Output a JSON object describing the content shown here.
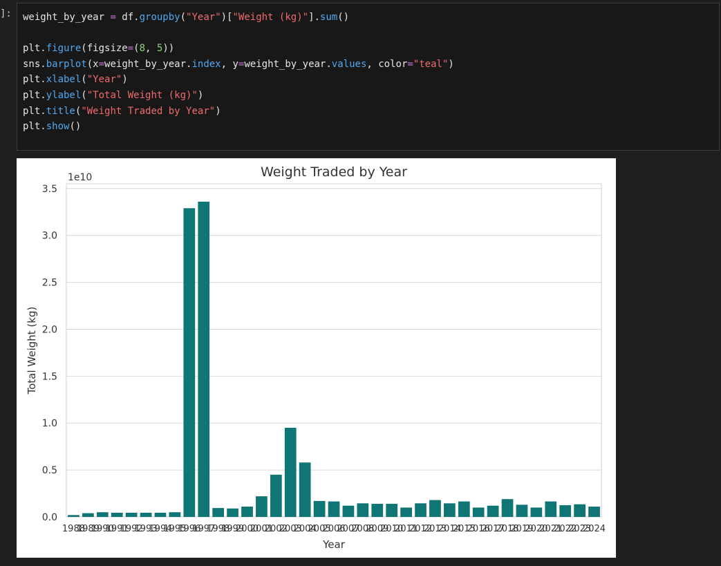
{
  "cell": {
    "prompt": "]:",
    "lines": [
      [
        {
          "t": "weight_by_year ",
          "c": "default"
        },
        {
          "t": "=",
          "c": "op"
        },
        {
          "t": " df.",
          "c": "default"
        },
        {
          "t": "groupby",
          "c": "func"
        },
        {
          "t": "(",
          "c": "default"
        },
        {
          "t": "\"Year\"",
          "c": "string"
        },
        {
          "t": ")[",
          "c": "default"
        },
        {
          "t": "\"Weight (kg)\"",
          "c": "string"
        },
        {
          "t": "].",
          "c": "default"
        },
        {
          "t": "sum",
          "c": "func"
        },
        {
          "t": "()",
          "c": "default"
        }
      ],
      [],
      [
        {
          "t": "plt.",
          "c": "default"
        },
        {
          "t": "figure",
          "c": "func"
        },
        {
          "t": "(figsize",
          "c": "default"
        },
        {
          "t": "=",
          "c": "op"
        },
        {
          "t": "(",
          "c": "default"
        },
        {
          "t": "8",
          "c": "number"
        },
        {
          "t": ", ",
          "c": "default"
        },
        {
          "t": "5",
          "c": "number"
        },
        {
          "t": "))",
          "c": "default"
        }
      ],
      [
        {
          "t": "sns.",
          "c": "default"
        },
        {
          "t": "barplot",
          "c": "func"
        },
        {
          "t": "(x",
          "c": "default"
        },
        {
          "t": "=",
          "c": "op"
        },
        {
          "t": "weight_by_year.",
          "c": "default"
        },
        {
          "t": "index",
          "c": "func"
        },
        {
          "t": ", y",
          "c": "default"
        },
        {
          "t": "=",
          "c": "op"
        },
        {
          "t": "weight_by_year.",
          "c": "default"
        },
        {
          "t": "values",
          "c": "func"
        },
        {
          "t": ", color",
          "c": "default"
        },
        {
          "t": "=",
          "c": "op"
        },
        {
          "t": "\"teal\"",
          "c": "string"
        },
        {
          "t": ")",
          "c": "default"
        }
      ],
      [
        {
          "t": "plt.",
          "c": "default"
        },
        {
          "t": "xlabel",
          "c": "func"
        },
        {
          "t": "(",
          "c": "default"
        },
        {
          "t": "\"Year\"",
          "c": "string"
        },
        {
          "t": ")",
          "c": "default"
        }
      ],
      [
        {
          "t": "plt.",
          "c": "default"
        },
        {
          "t": "ylabel",
          "c": "func"
        },
        {
          "t": "(",
          "c": "default"
        },
        {
          "t": "\"Total Weight (kg)\"",
          "c": "string"
        },
        {
          "t": ")",
          "c": "default"
        }
      ],
      [
        {
          "t": "plt.",
          "c": "default"
        },
        {
          "t": "title",
          "c": "func"
        },
        {
          "t": "(",
          "c": "default"
        },
        {
          "t": "\"Weight Traded by Year\"",
          "c": "string"
        },
        {
          "t": ")",
          "c": "default"
        }
      ],
      [
        {
          "t": "plt.",
          "c": "default"
        },
        {
          "t": "show",
          "c": "func"
        },
        {
          "t": "()",
          "c": "default"
        }
      ]
    ]
  },
  "colors": {
    "bar": "#0f7575",
    "grid": "#d9d9d9",
    "frame": "#d0d0d0",
    "text": "#333333"
  },
  "chart_data": {
    "type": "bar",
    "title": "Weight Traded by Year",
    "xlabel": "Year",
    "ylabel": "Total Weight (kg)",
    "offset_label": "1e10",
    "unit_scale": 10000000000,
    "ylim": [
      0,
      3.55
    ],
    "yticks": [
      0.0,
      0.5,
      1.0,
      1.5,
      2.0,
      2.5,
      3.0,
      3.5
    ],
    "ytick_labels": [
      "0.0",
      "0.5",
      "1.0",
      "1.5",
      "2.0",
      "2.5",
      "3.0",
      "3.5"
    ],
    "grid": true,
    "categories": [
      "1988",
      "1989",
      "1990",
      "1991",
      "1992",
      "1993",
      "1994",
      "1995",
      "1996",
      "1997",
      "1998",
      "1999",
      "2000",
      "2001",
      "2002",
      "2003",
      "2004",
      "2005",
      "2006",
      "2007",
      "2008",
      "2009",
      "2010",
      "2011",
      "2012",
      "2013",
      "2014",
      "2015",
      "2016",
      "2017",
      "2018",
      "2019",
      "2020",
      "2021",
      "2022",
      "2023",
      "2024"
    ],
    "values": [
      0.02,
      0.04,
      0.05,
      0.045,
      0.045,
      0.045,
      0.045,
      0.05,
      3.29,
      3.36,
      0.095,
      0.09,
      0.11,
      0.22,
      0.45,
      0.95,
      0.58,
      0.17,
      0.165,
      0.12,
      0.145,
      0.14,
      0.14,
      0.1,
      0.145,
      0.18,
      0.145,
      0.165,
      0.1,
      0.12,
      0.19,
      0.13,
      0.1,
      0.165,
      0.125,
      0.135,
      0.11
    ]
  }
}
